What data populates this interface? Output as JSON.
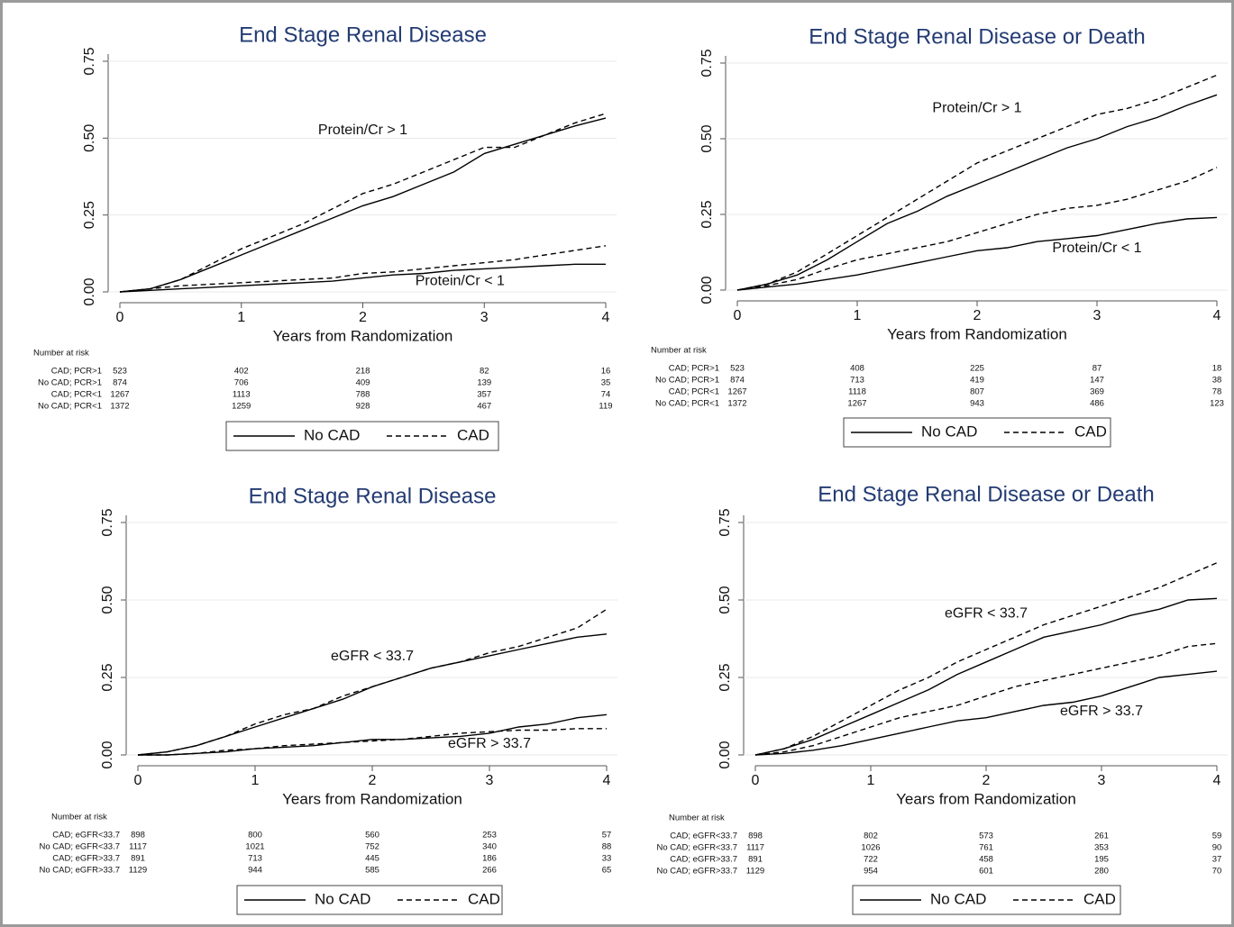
{
  "chart_data": [
    {
      "type": "line",
      "title": "End Stage Renal Disease",
      "x_label": "Years from Randomization",
      "x": [
        0,
        0.25,
        0.5,
        0.75,
        1,
        1.25,
        1.5,
        1.75,
        2,
        2.25,
        2.5,
        2.75,
        3,
        3.25,
        3.5,
        3.75,
        4
      ],
      "xlim": [
        0,
        4
      ],
      "xticks": [
        0,
        1,
        2,
        3,
        4
      ],
      "ylim": [
        0,
        0.75
      ],
      "yticks": [
        {
          "value": 0,
          "label": "0.00"
        },
        0.25,
        {
          "value": 0.5,
          "label": "0.50"
        },
        0.75
      ],
      "grid": true,
      "series": [
        {
          "name": "No CAD",
          "color": "#000000",
          "dash": "solid",
          "values": [
            0,
            0.01,
            0.04,
            0.08,
            0.12,
            0.16,
            0.2,
            0.24,
            0.28,
            0.31,
            0.35,
            0.39,
            0.45,
            0.48,
            0.51,
            0.54,
            0.565
          ]
        },
        {
          "name": "CAD",
          "color": "#000000",
          "dash": "dashed",
          "values": [
            0,
            0.01,
            0.04,
            0.09,
            0.14,
            0.18,
            0.22,
            0.27,
            0.32,
            0.35,
            0.39,
            0.43,
            0.47,
            0.47,
            0.51,
            0.55,
            0.58
          ]
        },
        {
          "name": "No CAD",
          "color": "#000000",
          "dash": "solid",
          "values": [
            0,
            0.005,
            0.01,
            0.015,
            0.02,
            0.025,
            0.03,
            0.035,
            0.045,
            0.055,
            0.06,
            0.07,
            0.075,
            0.08,
            0.085,
            0.09,
            0.09
          ]
        },
        {
          "name": "CAD",
          "color": "#000000",
          "dash": "dashed",
          "values": [
            0,
            0.01,
            0.02,
            0.025,
            0.03,
            0.035,
            0.04,
            0.045,
            0.06,
            0.065,
            0.075,
            0.085,
            0.095,
            0.105,
            0.12,
            0.135,
            0.15
          ]
        }
      ],
      "annotations": [
        {
          "text": "Protein/Cr > 1"
        },
        {
          "text": "Protein/Cr < 1"
        }
      ],
      "risk_table": {
        "title": "Number at risk",
        "rows": [
          {
            "label": "CAD; PCR>1",
            "values": [
              523,
              402,
              218,
              82,
              16
            ]
          },
          {
            "label": "No CAD; PCR>1",
            "values": [
              874,
              706,
              409,
              139,
              35
            ]
          },
          {
            "label": "CAD; PCR<1",
            "values": [
              1267,
              1113,
              788,
              357,
              74
            ]
          },
          {
            "label": "No CAD; PCR<1",
            "values": [
              1372,
              1259,
              928,
              467,
              119
            ]
          }
        ]
      }
    },
    {
      "type": "line",
      "title": "End Stage Renal Disease or Death",
      "x_label": "Years from Randomization",
      "x": [
        0,
        0.25,
        0.5,
        0.75,
        1,
        1.25,
        1.5,
        1.75,
        2,
        2.25,
        2.5,
        2.75,
        3,
        3.25,
        3.5,
        3.75,
        4
      ],
      "xlim": [
        0,
        4
      ],
      "xticks": [
        0,
        1,
        2,
        3,
        4
      ],
      "ylim": [
        0,
        0.75
      ],
      "yticks": [
        {
          "value": 0,
          "label": "0.00"
        },
        0.25,
        {
          "value": 0.5,
          "label": "0.50"
        },
        0.75
      ],
      "grid": true,
      "series": [
        {
          "name": "No CAD",
          "color": "#000000",
          "dash": "solid",
          "values": [
            0,
            0.02,
            0.05,
            0.1,
            0.16,
            0.22,
            0.26,
            0.31,
            0.35,
            0.39,
            0.43,
            0.47,
            0.5,
            0.54,
            0.57,
            0.61,
            0.645
          ]
        },
        {
          "name": "CAD",
          "color": "#000000",
          "dash": "dashed",
          "values": [
            0,
            0.02,
            0.06,
            0.12,
            0.18,
            0.24,
            0.3,
            0.36,
            0.42,
            0.46,
            0.5,
            0.54,
            0.58,
            0.6,
            0.63,
            0.67,
            0.71
          ]
        },
        {
          "name": "No CAD",
          "color": "#000000",
          "dash": "solid",
          "values": [
            0,
            0.01,
            0.02,
            0.035,
            0.05,
            0.07,
            0.09,
            0.11,
            0.13,
            0.14,
            0.16,
            0.17,
            0.18,
            0.2,
            0.22,
            0.235,
            0.24
          ]
        },
        {
          "name": "CAD",
          "color": "#000000",
          "dash": "dashed",
          "values": [
            0,
            0.015,
            0.035,
            0.07,
            0.1,
            0.12,
            0.14,
            0.16,
            0.19,
            0.22,
            0.25,
            0.27,
            0.28,
            0.3,
            0.33,
            0.36,
            0.405
          ]
        }
      ],
      "annotations": [
        {
          "text": "Protein/Cr > 1"
        },
        {
          "text": "Protein/Cr < 1"
        }
      ],
      "risk_table": {
        "title": "Number at risk",
        "rows": [
          {
            "label": "CAD; PCR>1",
            "values": [
              523,
              408,
              225,
              87,
              18
            ]
          },
          {
            "label": "No CAD; PCR>1",
            "values": [
              874,
              713,
              419,
              147,
              38
            ]
          },
          {
            "label": "CAD; PCR<1",
            "values": [
              1267,
              1118,
              807,
              369,
              78
            ]
          },
          {
            "label": "No CAD; PCR<1",
            "values": [
              1372,
              1267,
              943,
              486,
              123
            ]
          }
        ]
      }
    },
    {
      "type": "line",
      "title": "End Stage Renal Disease",
      "x_label": "Years from Randomization",
      "x": [
        0,
        0.25,
        0.5,
        0.75,
        1,
        1.25,
        1.5,
        1.75,
        2,
        2.25,
        2.5,
        2.75,
        3,
        3.25,
        3.5,
        3.75,
        4
      ],
      "xlim": [
        0,
        4
      ],
      "xticks": [
        0,
        1,
        2,
        3,
        4
      ],
      "ylim": [
        0,
        0.75
      ],
      "yticks": [
        {
          "value": 0,
          "label": "0.00"
        },
        0.25,
        {
          "value": 0.5,
          "label": "0.50"
        },
        0.75
      ],
      "grid": true,
      "series": [
        {
          "name": "No CAD",
          "color": "#000000",
          "dash": "solid",
          "values": [
            0,
            0.01,
            0.03,
            0.06,
            0.09,
            0.12,
            0.15,
            0.18,
            0.22,
            0.25,
            0.28,
            0.3,
            0.32,
            0.34,
            0.36,
            0.38,
            0.39
          ]
        },
        {
          "name": "CAD",
          "color": "#000000",
          "dash": "dashed",
          "values": [
            0,
            0.01,
            0.03,
            0.06,
            0.1,
            0.13,
            0.15,
            0.19,
            0.22,
            0.25,
            0.28,
            0.3,
            0.33,
            0.35,
            0.38,
            0.41,
            0.47
          ]
        },
        {
          "name": "No CAD",
          "color": "#000000",
          "dash": "solid",
          "values": [
            0,
            0,
            0.005,
            0.01,
            0.02,
            0.025,
            0.03,
            0.04,
            0.05,
            0.05,
            0.055,
            0.06,
            0.07,
            0.09,
            0.1,
            0.12,
            0.13
          ]
        },
        {
          "name": "CAD",
          "color": "#000000",
          "dash": "dashed",
          "values": [
            0,
            0,
            0.005,
            0.015,
            0.02,
            0.03,
            0.035,
            0.04,
            0.045,
            0.05,
            0.06,
            0.07,
            0.075,
            0.08,
            0.08,
            0.085,
            0.085
          ]
        }
      ],
      "annotations": [
        {
          "text": "eGFR < 33.7"
        },
        {
          "text": "eGFR > 33.7"
        }
      ],
      "risk_table": {
        "title": "Number at risk",
        "rows": [
          {
            "label": "CAD; eGFR<33.7",
            "values": [
              898,
              800,
              560,
              253,
              57
            ]
          },
          {
            "label": "No CAD; eGFR<33.7",
            "values": [
              1117,
              1021,
              752,
              340,
              88
            ]
          },
          {
            "label": "CAD; eGFR>33.7",
            "values": [
              891,
              713,
              445,
              186,
              33
            ]
          },
          {
            "label": "No CAD; eGFR>33.7",
            "values": [
              1129,
              944,
              585,
              266,
              65
            ]
          }
        ]
      }
    },
    {
      "type": "line",
      "title": "End Stage Renal Disease or Death",
      "x_label": "Years from Randomization",
      "x": [
        0,
        0.25,
        0.5,
        0.75,
        1,
        1.25,
        1.5,
        1.75,
        2,
        2.25,
        2.5,
        2.75,
        3,
        3.25,
        3.5,
        3.75,
        4
      ],
      "xlim": [
        0,
        4
      ],
      "xticks": [
        0,
        1,
        2,
        3,
        4
      ],
      "ylim": [
        0,
        0.75
      ],
      "yticks": [
        {
          "value": 0,
          "label": "0.00"
        },
        0.25,
        {
          "value": 0.5,
          "label": "0.50"
        },
        0.75
      ],
      "grid": true,
      "series": [
        {
          "name": "No CAD",
          "color": "#000000",
          "dash": "solid",
          "values": [
            0,
            0.02,
            0.05,
            0.09,
            0.13,
            0.17,
            0.21,
            0.26,
            0.3,
            0.34,
            0.38,
            0.4,
            0.42,
            0.45,
            0.47,
            0.5,
            0.505
          ]
        },
        {
          "name": "CAD",
          "color": "#000000",
          "dash": "dashed",
          "values": [
            0,
            0.02,
            0.06,
            0.11,
            0.16,
            0.21,
            0.25,
            0.3,
            0.34,
            0.38,
            0.42,
            0.45,
            0.48,
            0.51,
            0.54,
            0.58,
            0.62
          ]
        },
        {
          "name": "No CAD",
          "color": "#000000",
          "dash": "solid",
          "values": [
            0,
            0.005,
            0.015,
            0.03,
            0.05,
            0.07,
            0.09,
            0.11,
            0.12,
            0.14,
            0.16,
            0.17,
            0.19,
            0.22,
            0.25,
            0.26,
            0.27
          ]
        },
        {
          "name": "CAD",
          "color": "#000000",
          "dash": "dashed",
          "values": [
            0,
            0.01,
            0.03,
            0.06,
            0.09,
            0.12,
            0.14,
            0.16,
            0.19,
            0.22,
            0.24,
            0.26,
            0.28,
            0.3,
            0.32,
            0.35,
            0.36
          ]
        }
      ],
      "annotations": [
        {
          "text": "eGFR < 33.7"
        },
        {
          "text": "eGFR > 33.7"
        }
      ],
      "risk_table": {
        "title": "Number at risk",
        "rows": [
          {
            "label": "CAD; eGFR<33.7",
            "values": [
              898,
              802,
              573,
              261,
              59
            ]
          },
          {
            "label": "No CAD; eGFR<33.7",
            "values": [
              1117,
              1026,
              761,
              353,
              90
            ]
          },
          {
            "label": "CAD; eGFR>33.7",
            "values": [
              891,
              722,
              458,
              195,
              37
            ]
          },
          {
            "label": "No CAD; eGFR>33.7",
            "values": [
              1129,
              954,
              601,
              280,
              70
            ]
          }
        ]
      }
    }
  ]
}
